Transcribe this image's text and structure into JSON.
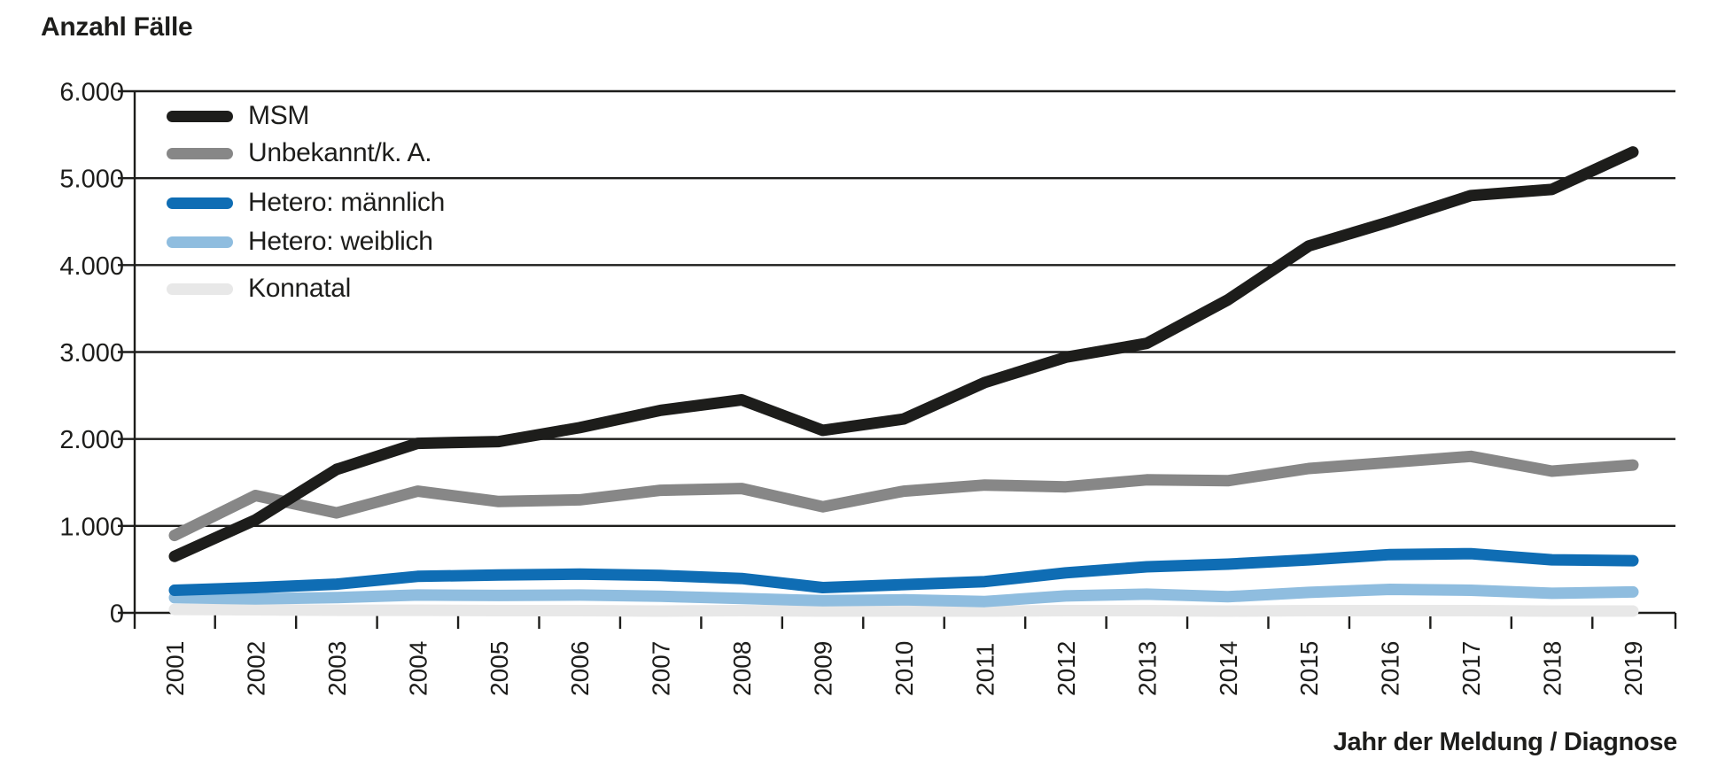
{
  "chart_data": {
    "type": "line",
    "title": "Anzahl Fälle",
    "xlabel": "Jahr der Meldung / Diagnose",
    "ylabel": "Anzahl Fälle",
    "ylim": [
      0,
      6000
    ],
    "grid": "horizontal",
    "legend_position": "top-left-inside",
    "axis_color": "#1d1d1b",
    "background_color": "#ffffff",
    "years": [
      "2001",
      "2002",
      "2003",
      "2004",
      "2005",
      "2006",
      "2007",
      "2008",
      "2009",
      "2010",
      "2011",
      "2012",
      "2013",
      "2014",
      "2015",
      "2016",
      "2017",
      "2018",
      "2019"
    ],
    "y_ticks": [
      {
        "value": 0,
        "label": "0"
      },
      {
        "value": 1000,
        "label": "1.000"
      },
      {
        "value": 2000,
        "label": "2.000"
      },
      {
        "value": 3000,
        "label": "3.000"
      },
      {
        "value": 4000,
        "label": "4.000"
      },
      {
        "value": 5000,
        "label": "5.000"
      },
      {
        "value": 6000,
        "label": "6.000"
      }
    ],
    "series": [
      {
        "id": "msm",
        "label": "MSM",
        "color": "#1d1d1b",
        "values": [
          650,
          1070,
          1650,
          1950,
          1970,
          2130,
          2330,
          2450,
          2100,
          2230,
          2650,
          2940,
          3100,
          3600,
          4220,
          4500,
          4800,
          4870,
          5300
        ]
      },
      {
        "id": "unbekannt",
        "label": "Unbekannt/k. A.",
        "color": "#878787",
        "values": [
          890,
          1350,
          1150,
          1400,
          1280,
          1300,
          1410,
          1430,
          1220,
          1400,
          1470,
          1450,
          1530,
          1520,
          1660,
          1730,
          1800,
          1630,
          1700
        ]
      },
      {
        "id": "hetero-maennlich",
        "label": "Hetero: männlich",
        "color": "#0f6db4",
        "values": [
          260,
          290,
          330,
          420,
          435,
          445,
          430,
          395,
          290,
          325,
          360,
          460,
          530,
          560,
          610,
          670,
          680,
          610,
          600
        ]
      },
      {
        "id": "hetero-weiblich",
        "label": "Hetero: weiblich",
        "color": "#8fbddf",
        "values": [
          175,
          160,
          175,
          205,
          200,
          205,
          190,
          165,
          140,
          150,
          130,
          195,
          215,
          185,
          235,
          270,
          260,
          225,
          240
        ]
      },
      {
        "id": "konnatal",
        "label": "Konnatal",
        "color": "#e8e8e8",
        "values": [
          40,
          35,
          30,
          30,
          25,
          25,
          20,
          25,
          20,
          20,
          20,
          25,
          25,
          20,
          25,
          25,
          25,
          20,
          20
        ]
      }
    ]
  }
}
